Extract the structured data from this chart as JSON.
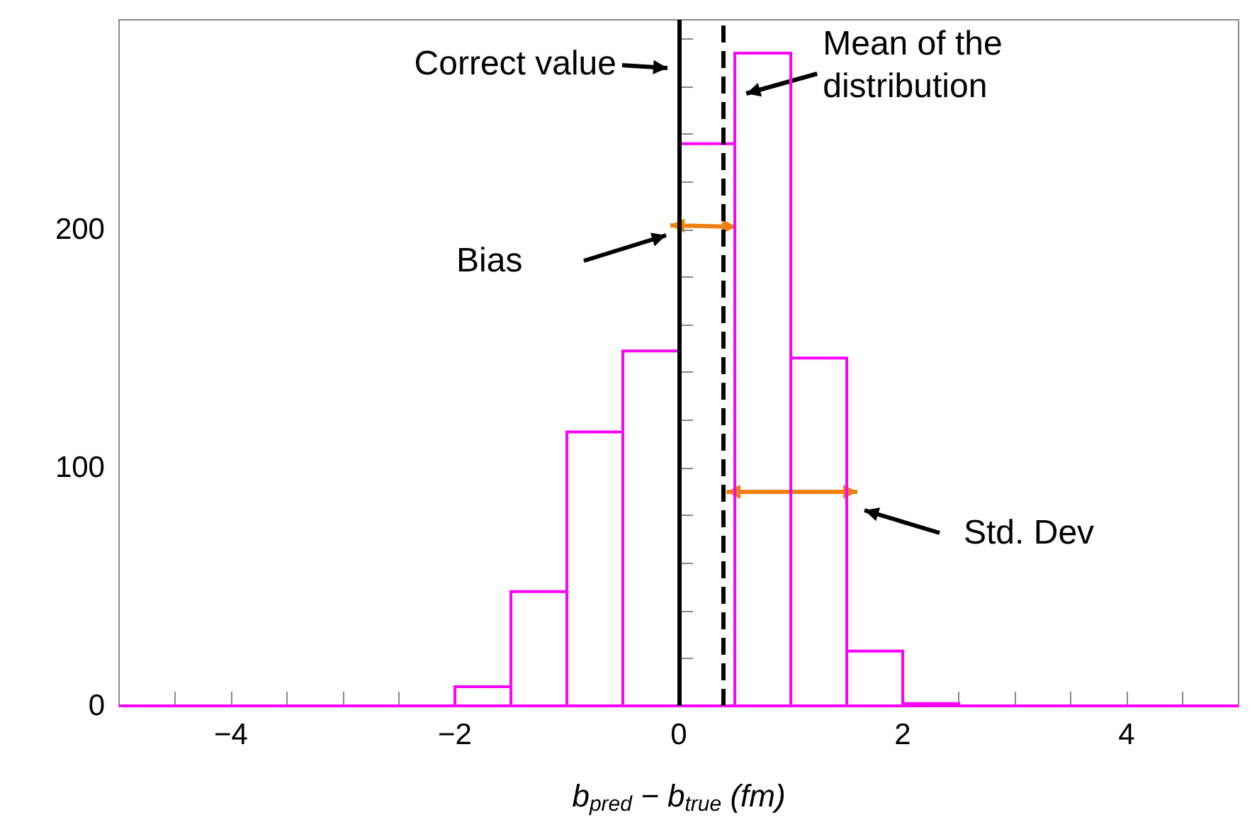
{
  "chart_data": {
    "type": "histogram",
    "xlabel": "b$_{pred}$ − b$_{true}$ (fm)",
    "bins": [
      -5,
      -4.5,
      -4,
      -3.5,
      -3,
      -2.5,
      -2,
      -1.5,
      -1,
      -0.5,
      0,
      0.5,
      1,
      1.5,
      2,
      2.5,
      3,
      3.5,
      4,
      4.5,
      5
    ],
    "values": [
      0,
      0,
      0,
      0,
      0,
      0,
      8,
      48,
      115,
      149,
      236,
      274,
      146,
      23,
      1,
      0,
      0,
      0,
      0,
      0
    ],
    "color": "#ff00ff",
    "xlim": [
      -5,
      5
    ],
    "xticks": [
      {
        "value": -4.5,
        "label": null
      },
      {
        "value": -4,
        "label": "−4"
      },
      {
        "value": -3.5,
        "label": null
      },
      {
        "value": -3,
        "label": null
      },
      {
        "value": -2.5,
        "label": null
      },
      {
        "value": -2,
        "label": "−2"
      },
      {
        "value": -1.5,
        "label": null
      },
      {
        "value": -1,
        "label": null
      },
      {
        "value": -0.5,
        "label": null
      },
      0,
      {
        "value": 0.5,
        "label": null
      },
      {
        "value": 1,
        "label": null
      },
      {
        "value": 1.5,
        "label": null
      },
      2,
      {
        "value": 2.5,
        "label": null
      },
      {
        "value": 3,
        "label": null
      },
      {
        "value": 3.5,
        "label": null
      },
      4,
      {
        "value": 4.5,
        "label": null
      }
    ],
    "ylim": [
      0,
      288
    ],
    "yticks": [
      0,
      {
        "value": 20,
        "label": null
      },
      {
        "value": 40,
        "label": null
      },
      {
        "value": 60,
        "label": null
      },
      {
        "value": 80,
        "label": null
      },
      100,
      {
        "value": 120,
        "label": null
      },
      {
        "value": 140,
        "label": null
      },
      {
        "value": 160,
        "label": null
      },
      {
        "value": 180,
        "label": null
      },
      200,
      {
        "value": 220,
        "label": null
      },
      {
        "value": 240,
        "label": null
      },
      {
        "value": 260,
        "label": null
      },
      {
        "value": 280,
        "label": null
      }
    ],
    "ref_lines": [
      {
        "axis": "x",
        "value": 0,
        "label": "Correct value",
        "color": "#000000",
        "line_style": "solid"
      },
      {
        "axis": "x",
        "value": 0.4,
        "label": "Mean of the\ndistribution",
        "color": "#000000",
        "line_style": "dashed"
      }
    ],
    "annotations": [
      "Bias",
      "Std. Dev"
    ],
    "grid": false
  }
}
